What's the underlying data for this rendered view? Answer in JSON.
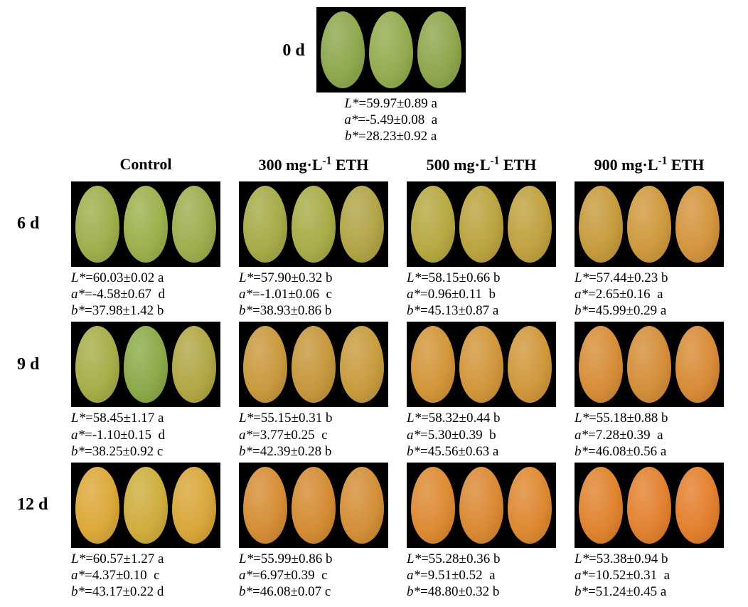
{
  "figure": {
    "background_color": "#ffffff",
    "photo_background": "#000000",
    "text_color": "#000000",
    "font_family": "Times New Roman",
    "label_fontsize_pt": 18,
    "header_fontsize_pt": 17,
    "caption_fontsize_pt": 14
  },
  "day0": {
    "time_label": "0 d",
    "mango_colors": [
      "#8ea94e",
      "#93ad50",
      "#8fa74d"
    ],
    "L": "L*=59.97±0.89 a",
    "a": "a*=-5.49±0.08  a",
    "b": "b*=28.23±0.92 a"
  },
  "columns": [
    {
      "label": "Control"
    },
    {
      "label_html": "300 mg·L<sup>-1</sup> ETH",
      "label": "300 mg·L-1 ETH"
    },
    {
      "label_html": "500 mg·L<sup>-1</sup> ETH",
      "label": "500 mg·L-1 ETH"
    },
    {
      "label_html": "900 mg·L<sup>-1</sup> ETH",
      "label": "900 mg·L-1 ETH"
    }
  ],
  "rows": [
    {
      "time_label": "6 d",
      "cells": [
        {
          "mango_colors": [
            "#9fb04e",
            "#9cb14d",
            "#9fae4f"
          ],
          "L": "L*=60.03±0.02 a",
          "a": "a*=-4.58±0.67  d",
          "b": "b*=37.98±1.42 b"
        },
        {
          "mango_colors": [
            "#a7ab48",
            "#a9ad49",
            "#b2a548"
          ],
          "L": "L*=57.90±0.32 b",
          "a": "a*=-1.01±0.06   c",
          "b": "b*=38.93±0.86 b"
        },
        {
          "mango_colors": [
            "#b7a943",
            "#bca441",
            "#c1a241"
          ],
          "L": "L*=58.15±0.66 b",
          "a": "a*=0.96±0.11    b",
          "b": "b*=45.13±0.87 a"
        },
        {
          "mango_colors": [
            "#c79c3e",
            "#cf9a3f",
            "#d4953e"
          ],
          "L": "L*=57.44±0.23 b",
          "a": "a*=2.65±0.16    a",
          "b": "b*=45.99±0.29 a"
        }
      ]
    },
    {
      "time_label": "9 d",
      "cells": [
        {
          "mango_colors": [
            "#a8ae49",
            "#8cab4a",
            "#b1a847"
          ],
          "L": "L*=58.45±1.17 a",
          "a": "a*=-1.10±0.15  d",
          "b": "b*=38.25±0.92 c"
        },
        {
          "mango_colors": [
            "#c99a3f",
            "#c6983e",
            "#c89c40"
          ],
          "L": "L*=55.15±0.31 b",
          "a": "a*=3.77±0.25   c",
          "b": "b*=42.39±0.28 b"
        },
        {
          "mango_colors": [
            "#d3963a",
            "#d2973c",
            "#d1983d"
          ],
          "L": "L*=58.32±0.44 b",
          "a": "a*=5.30±0.39    b",
          "b": "b*=45.56±0.63 a"
        },
        {
          "mango_colors": [
            "#d78e39",
            "#d58f3a",
            "#d88c37"
          ],
          "L": "L*=55.18±0.88 b",
          "a": "a*=7.28±0.39    a",
          "b": "b*=46.08±0.56 a"
        }
      ]
    },
    {
      "time_label": "12 d",
      "cells": [
        {
          "mango_colors": [
            "#dca93a",
            "#cfae3e",
            "#d9a73b"
          ],
          "L": "L*=60.57±1.27 a",
          "a": "a*=4.37±0.10   c",
          "b": "b*=43.17±0.22 d"
        },
        {
          "mango_colors": [
            "#d68e36",
            "#d58c35",
            "#d48f38"
          ],
          "L": "L*=55.99±0.86 b",
          "a": "a*=6.97±0.39   c",
          "b": "b*=46.08±0.07 c"
        },
        {
          "mango_colors": [
            "#dd8b33",
            "#db8a34",
            "#de8932"
          ],
          "L": "L*=55.28±0.36 b",
          "a": "a*=9.51±0.52    a",
          "b": "b*=48.80±0.32 b"
        },
        {
          "mango_colors": [
            "#e08430",
            "#e28230",
            "#e4802f"
          ],
          "L": "L*=53.38±0.94 b",
          "a": "a*=10.52±0.31  a",
          "b": "b*=51.24±0.45 a"
        }
      ]
    }
  ]
}
